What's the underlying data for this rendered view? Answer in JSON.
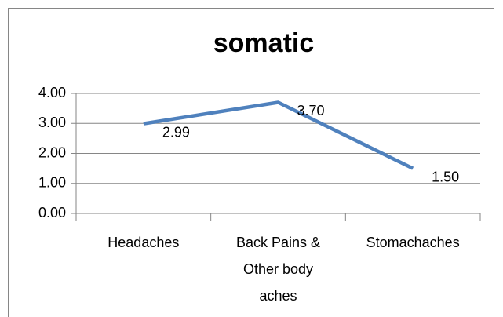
{
  "chart_data": {
    "type": "line",
    "title": "somatic",
    "categories": [
      "Headaches",
      "Back Pains & Other body aches",
      "Stomachaches"
    ],
    "series": [
      {
        "color": "#4f81bd",
        "values": [
          2.99,
          3.7,
          1.5
        ],
        "value_labels": [
          "2.99",
          "3.70",
          "1.50"
        ]
      }
    ],
    "ylim": [
      0,
      4
    ],
    "yticks": [
      {
        "value": 0,
        "label": "0.00"
      },
      {
        "value": 1,
        "label": "1.00"
      },
      {
        "value": 2,
        "label": "2.00"
      },
      {
        "value": 3,
        "label": "3.00"
      },
      {
        "value": 4,
        "label": "4.00"
      }
    ],
    "grid": true
  }
}
